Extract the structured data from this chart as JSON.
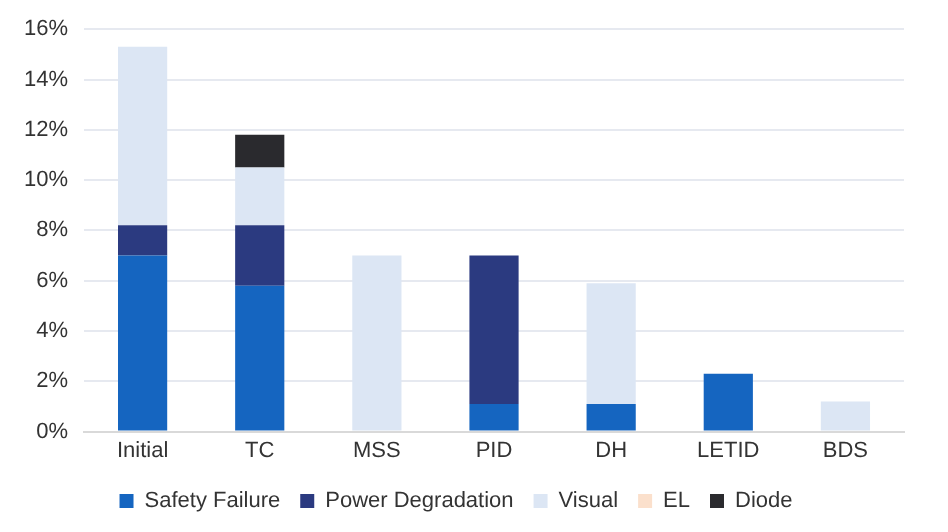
{
  "chart_data": {
    "type": "bar",
    "stacked": true,
    "categories": [
      "Initial",
      "TC",
      "MSS",
      "PID",
      "DH",
      "LETID",
      "BDS"
    ],
    "series": [
      {
        "name": "Safety Failure",
        "color": "#1565c0",
        "values": [
          7.0,
          5.8,
          null,
          1.1,
          1.1,
          2.3,
          null
        ]
      },
      {
        "name": "Power Degradation",
        "color": "#2b3a80",
        "values": [
          1.2,
          2.4,
          null,
          5.9,
          null,
          null,
          null
        ]
      },
      {
        "name": "Visual",
        "color": "#dce6f4",
        "values": [
          7.1,
          2.3,
          7.0,
          null,
          4.8,
          null,
          1.2
        ]
      },
      {
        "name": "EL",
        "color": "#fbe0cc",
        "values": [
          null,
          null,
          null,
          null,
          null,
          null,
          null
        ]
      },
      {
        "name": "Diode",
        "color": "#2a2a2e",
        "values": [
          null,
          1.3,
          null,
          null,
          null,
          null,
          null
        ]
      }
    ],
    "ylim": [
      0,
      16
    ],
    "yticks": [
      {
        "value": 0,
        "label": "0%"
      },
      {
        "value": 2,
        "label": "2%"
      },
      {
        "value": 4,
        "label": "4%"
      },
      {
        "value": 6,
        "label": "6%"
      },
      {
        "value": 8,
        "label": "8%"
      },
      {
        "value": 10,
        "label": "10%"
      },
      {
        "value": 12,
        "label": "12%"
      },
      {
        "value": 14,
        "label": "14%"
      },
      {
        "value": 16,
        "label": "16%"
      }
    ],
    "grid": "y",
    "legend": "bottom"
  }
}
